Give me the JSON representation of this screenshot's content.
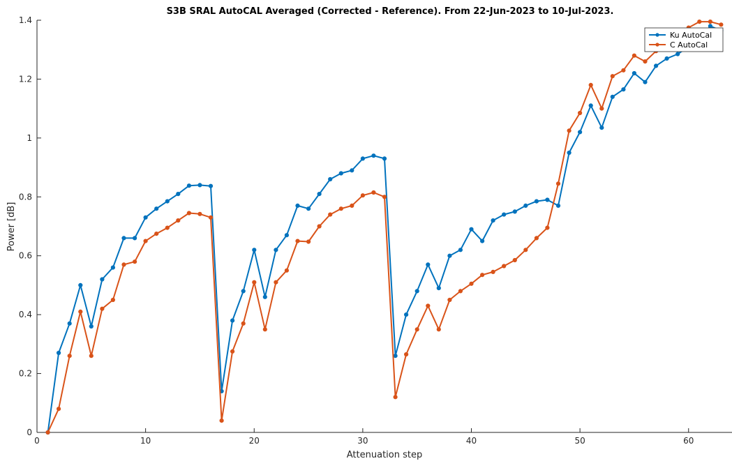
{
  "chart_data": {
    "type": "line",
    "title": "S3B SRAL AutoCAL Averaged (Corrected - Reference). From 22-Jun-2023 to 10-Jul-2023.",
    "xlabel": "Attenuation step",
    "ylabel": "Power [dB]",
    "xlim": [
      0,
      64
    ],
    "ylim": [
      0,
      1.4
    ],
    "xticks": [
      0,
      10,
      20,
      30,
      40,
      50,
      60
    ],
    "xtick_labels": [
      "0",
      "10",
      "20",
      "30",
      "40",
      "50",
      "60"
    ],
    "yticks": [
      0,
      0.2,
      0.4,
      0.6,
      0.8,
      1,
      1.2,
      1.4
    ],
    "ytick_labels": [
      "0",
      "0.2",
      "0.4",
      "0.6",
      "0.8",
      "1",
      "1.2",
      "1.4"
    ],
    "grid": false,
    "legend_position": "top-right",
    "x": [
      1,
      2,
      3,
      4,
      5,
      6,
      7,
      8,
      9,
      10,
      11,
      12,
      13,
      14,
      15,
      16,
      17,
      18,
      19,
      20,
      21,
      22,
      23,
      24,
      25,
      26,
      27,
      28,
      29,
      30,
      31,
      32,
      33,
      34,
      35,
      36,
      37,
      38,
      39,
      40,
      41,
      42,
      43,
      44,
      45,
      46,
      47,
      48,
      49,
      50,
      51,
      52,
      53,
      54,
      55,
      56,
      57,
      58,
      59,
      60,
      61,
      62,
      63
    ],
    "series": [
      {
        "name": "Ku AutoCal",
        "color": "#0072bd",
        "values": [
          0.0,
          0.27,
          0.37,
          0.5,
          0.36,
          0.52,
          0.56,
          0.66,
          0.66,
          0.73,
          0.76,
          0.785,
          0.81,
          0.838,
          0.84,
          0.837,
          0.14,
          0.38,
          0.48,
          0.62,
          0.46,
          0.62,
          0.67,
          0.77,
          0.76,
          0.81,
          0.86,
          0.88,
          0.89,
          0.93,
          0.94,
          0.93,
          0.26,
          0.4,
          0.48,
          0.57,
          0.49,
          0.6,
          0.62,
          0.69,
          0.65,
          0.72,
          0.74,
          0.75,
          0.77,
          0.785,
          0.79,
          0.77,
          0.95,
          1.02,
          1.11,
          1.035,
          1.14,
          1.165,
          1.22,
          1.19,
          1.245,
          1.27,
          1.285,
          1.31,
          1.33,
          1.38,
          1.365
        ]
      },
      {
        "name": "C AutoCal",
        "color": "#d95319",
        "values": [
          0.0,
          0.08,
          0.26,
          0.41,
          0.26,
          0.42,
          0.45,
          0.57,
          0.58,
          0.65,
          0.675,
          0.695,
          0.72,
          0.745,
          0.742,
          0.73,
          0.04,
          0.275,
          0.37,
          0.51,
          0.35,
          0.51,
          0.55,
          0.65,
          0.648,
          0.7,
          0.74,
          0.76,
          0.77,
          0.805,
          0.815,
          0.8,
          0.12,
          0.265,
          0.35,
          0.43,
          0.35,
          0.45,
          0.48,
          0.505,
          0.535,
          0.545,
          0.565,
          0.585,
          0.62,
          0.66,
          0.695,
          0.845,
          1.025,
          1.085,
          1.18,
          1.1,
          1.21,
          1.23,
          1.28,
          1.26,
          1.295,
          1.32,
          1.335,
          1.375,
          1.395,
          1.395,
          1.385
        ]
      }
    ]
  }
}
